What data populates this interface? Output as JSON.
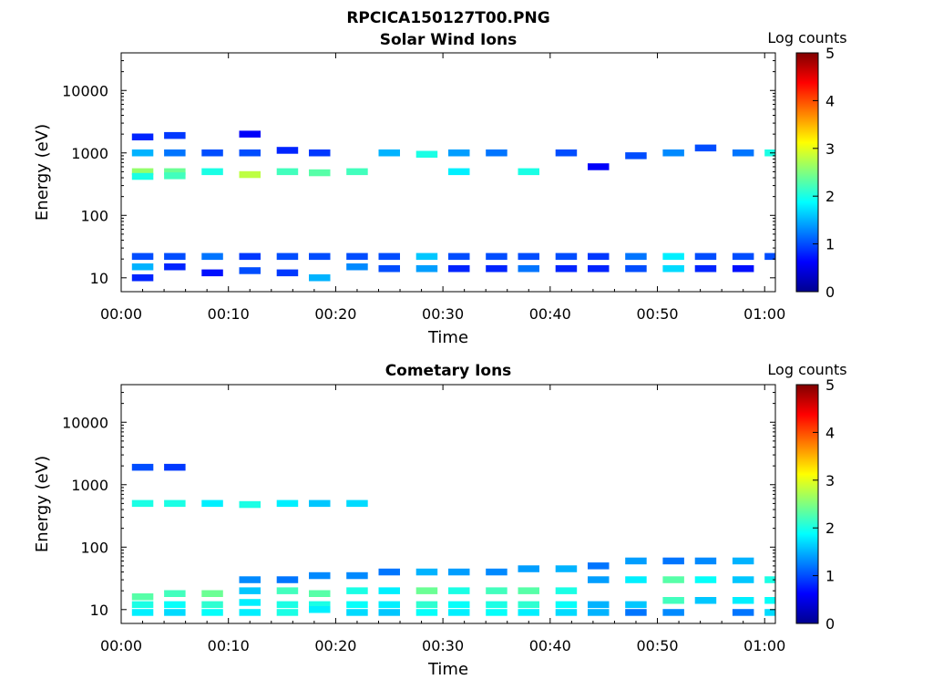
{
  "figure": {
    "title": "RPCICA150127T00.PNG"
  },
  "chart_data": [
    {
      "type": "heatmap",
      "title": "Solar Wind Ions",
      "xlabel": "Time",
      "ylabel": "Energy (eV)",
      "x_ticks": [
        "00:00",
        "00:10",
        "00:20",
        "00:30",
        "00:40",
        "00:50",
        "01:00"
      ],
      "x_range_minutes": [
        0,
        61
      ],
      "y_scale": "log",
      "y_range": [
        6,
        40000
      ],
      "y_ticks": [
        10,
        100,
        1000,
        10000
      ],
      "y_tick_labels": [
        "10",
        "100",
        "1000",
        "10000"
      ],
      "colorbar": {
        "label": "Log counts",
        "range": [
          0,
          5
        ],
        "ticks": [
          "0",
          "1",
          "2",
          "3",
          "4",
          "5"
        ],
        "colormap": "jet"
      },
      "time_step_minutes": 1,
      "bursts": [
        {
          "t": 2.0,
          "width": 2,
          "cells": [
            [
              22,
              1
            ],
            [
              15,
              1.5
            ],
            [
              10,
              0.8
            ],
            [
              500,
              2.6
            ],
            [
              420,
              2.0
            ],
            [
              1000,
              1.5
            ],
            [
              1800,
              0.8
            ]
          ]
        },
        {
          "t": 5.0,
          "width": 2,
          "cells": [
            [
              22,
              1
            ],
            [
              15,
              0.8
            ],
            [
              500,
              2.4
            ],
            [
              430,
              2.2
            ],
            [
              1000,
              1.2
            ],
            [
              1900,
              0.9
            ]
          ]
        },
        {
          "t": 8.5,
          "width": 2,
          "cells": [
            [
              22,
              1.2
            ],
            [
              12,
              0.7
            ],
            [
              500,
              2.0
            ],
            [
              1000,
              1.0
            ]
          ]
        },
        {
          "t": 12.0,
          "width": 2,
          "cells": [
            [
              22,
              0.9
            ],
            [
              13,
              1.0
            ],
            [
              450,
              2.8
            ],
            [
              1000,
              1.0
            ],
            [
              2000,
              0.6
            ]
          ]
        },
        {
          "t": 15.5,
          "width": 2,
          "cells": [
            [
              22,
              1.0
            ],
            [
              12,
              0.9
            ],
            [
              500,
              2.2
            ],
            [
              1100,
              0.8
            ]
          ]
        },
        {
          "t": 18.5,
          "width": 2,
          "cells": [
            [
              22,
              1.0
            ],
            [
              10,
              1.5
            ],
            [
              480,
              2.3
            ],
            [
              1000,
              0.9
            ]
          ]
        },
        {
          "t": 22.0,
          "width": 2,
          "cells": [
            [
              22,
              1.0
            ],
            [
              15,
              1.3
            ],
            [
              500,
              2.2
            ]
          ]
        },
        {
          "t": 25.0,
          "width": 2,
          "cells": [
            [
              22,
              1.0
            ],
            [
              14,
              1.0
            ],
            [
              1000,
              1.5
            ]
          ]
        },
        {
          "t": 28.5,
          "width": 2,
          "cells": [
            [
              22,
              1.6
            ],
            [
              14,
              1.4
            ],
            [
              950,
              2.0
            ]
          ]
        },
        {
          "t": 31.5,
          "width": 2,
          "cells": [
            [
              22,
              1.0
            ],
            [
              14,
              0.8
            ],
            [
              1000,
              1.4
            ],
            [
              500,
              1.8
            ]
          ]
        },
        {
          "t": 35.0,
          "width": 2,
          "cells": [
            [
              22,
              1.0
            ],
            [
              14,
              0.8
            ],
            [
              1000,
              1.2
            ]
          ]
        },
        {
          "t": 38.0,
          "width": 2,
          "cells": [
            [
              22,
              1.0
            ],
            [
              14,
              1.2
            ],
            [
              500,
              2.0
            ]
          ]
        },
        {
          "t": 41.5,
          "width": 2,
          "cells": [
            [
              22,
              1.0
            ],
            [
              14,
              0.8
            ],
            [
              1000,
              1.0
            ]
          ]
        },
        {
          "t": 44.5,
          "width": 2,
          "cells": [
            [
              22,
              0.9
            ],
            [
              14,
              0.8
            ],
            [
              600,
              0.6
            ]
          ]
        },
        {
          "t": 48.0,
          "width": 2,
          "cells": [
            [
              22,
              1.2
            ],
            [
              14,
              1.0
            ],
            [
              900,
              1.0
            ]
          ]
        },
        {
          "t": 51.5,
          "width": 2,
          "cells": [
            [
              22,
              1.8
            ],
            [
              14,
              1.7
            ],
            [
              1000,
              1.3
            ]
          ]
        },
        {
          "t": 54.5,
          "width": 2,
          "cells": [
            [
              22,
              1.0
            ],
            [
              14,
              0.8
            ],
            [
              1200,
              1.0
            ]
          ]
        },
        {
          "t": 58.0,
          "width": 2,
          "cells": [
            [
              22,
              1.0
            ],
            [
              14,
              0.7
            ],
            [
              1000,
              1.2
            ]
          ]
        },
        {
          "t": 60.5,
          "width": 1,
          "cells": [
            [
              22,
              1.0
            ],
            [
              1000,
              2.0
            ]
          ]
        }
      ]
    },
    {
      "type": "heatmap",
      "title": "Cometary Ions",
      "xlabel": "Time",
      "ylabel": "Energy (eV)",
      "x_ticks": [
        "00:00",
        "00:10",
        "00:20",
        "00:30",
        "00:40",
        "00:50",
        "01:00"
      ],
      "x_range_minutes": [
        0,
        61
      ],
      "y_scale": "log",
      "y_range": [
        6,
        40000
      ],
      "y_ticks": [
        10,
        100,
        1000,
        10000
      ],
      "y_tick_labels": [
        "10",
        "100",
        "1000",
        "10000"
      ],
      "colorbar": {
        "label": "Log counts",
        "range": [
          0,
          5
        ],
        "ticks": [
          "0",
          "1",
          "2",
          "3",
          "4",
          "5"
        ],
        "colormap": "jet"
      },
      "time_step_minutes": 1,
      "bursts": [
        {
          "t": 2.0,
          "width": 2,
          "cells": [
            [
              16,
              2.3
            ],
            [
              12,
              2.0
            ],
            [
              9,
              1.8
            ],
            [
              500,
              2.0
            ],
            [
              1900,
              1.0
            ]
          ]
        },
        {
          "t": 5.0,
          "width": 2,
          "cells": [
            [
              18,
              2.2
            ],
            [
              12,
              1.9
            ],
            [
              9,
              1.7
            ],
            [
              500,
              2.0
            ],
            [
              1900,
              0.9
            ]
          ]
        },
        {
          "t": 8.5,
          "width": 2,
          "cells": [
            [
              18,
              2.4
            ],
            [
              12,
              2.1
            ],
            [
              9,
              1.9
            ],
            [
              500,
              1.8
            ]
          ]
        },
        {
          "t": 12.0,
          "width": 2,
          "cells": [
            [
              20,
              1.6
            ],
            [
              13,
              1.8
            ],
            [
              9,
              1.8
            ],
            [
              480,
              2.0
            ],
            [
              30,
              1.3
            ]
          ]
        },
        {
          "t": 15.5,
          "width": 2,
          "cells": [
            [
              20,
              2.2
            ],
            [
              12,
              2.0
            ],
            [
              9,
              2.0
            ],
            [
              500,
              1.8
            ],
            [
              30,
              1.2
            ]
          ]
        },
        {
          "t": 18.5,
          "width": 2,
          "cells": [
            [
              18,
              2.3
            ],
            [
              12,
              2.0
            ],
            [
              10,
              1.8
            ],
            [
              500,
              1.6
            ],
            [
              35,
              1.3
            ]
          ]
        },
        {
          "t": 22.0,
          "width": 2,
          "cells": [
            [
              20,
              2.0
            ],
            [
              12,
              1.9
            ],
            [
              9,
              1.7
            ],
            [
              500,
              1.7
            ],
            [
              35,
              1.3
            ]
          ]
        },
        {
          "t": 25.0,
          "width": 2,
          "cells": [
            [
              20,
              1.8
            ],
            [
              12,
              1.8
            ],
            [
              9,
              1.6
            ],
            [
              40,
              1.2
            ]
          ]
        },
        {
          "t": 28.5,
          "width": 2,
          "cells": [
            [
              20,
              2.4
            ],
            [
              12,
              2.1
            ],
            [
              9,
              1.9
            ],
            [
              40,
              1.5
            ]
          ]
        },
        {
          "t": 31.5,
          "width": 2,
          "cells": [
            [
              20,
              2.0
            ],
            [
              12,
              1.9
            ],
            [
              9,
              1.8
            ],
            [
              40,
              1.4
            ]
          ]
        },
        {
          "t": 35.0,
          "width": 2,
          "cells": [
            [
              20,
              2.2
            ],
            [
              12,
              2.0
            ],
            [
              9,
              1.9
            ],
            [
              40,
              1.3
            ]
          ]
        },
        {
          "t": 38.0,
          "width": 2,
          "cells": [
            [
              20,
              2.3
            ],
            [
              12,
              2.1
            ],
            [
              9,
              1.8
            ],
            [
              45,
              1.4
            ]
          ]
        },
        {
          "t": 41.5,
          "width": 2,
          "cells": [
            [
              20,
              2.0
            ],
            [
              12,
              1.9
            ],
            [
              9,
              1.7
            ],
            [
              45,
              1.5
            ]
          ]
        },
        {
          "t": 44.5,
          "width": 2,
          "cells": [
            [
              30,
              1.4
            ],
            [
              12,
              1.5
            ],
            [
              9,
              1.5
            ],
            [
              50,
              1.2
            ]
          ]
        },
        {
          "t": 48.0,
          "width": 2,
          "cells": [
            [
              30,
              1.8
            ],
            [
              12,
              1.6
            ],
            [
              9,
              1.2
            ],
            [
              60,
              1.4
            ]
          ]
        },
        {
          "t": 51.5,
          "width": 2,
          "cells": [
            [
              30,
              2.3
            ],
            [
              14,
              2.2
            ],
            [
              9,
              1.3
            ],
            [
              60,
              1.2
            ]
          ]
        },
        {
          "t": 54.5,
          "width": 2,
          "cells": [
            [
              30,
              1.9
            ],
            [
              14,
              1.6
            ],
            [
              60,
              1.3
            ]
          ]
        },
        {
          "t": 58.0,
          "width": 2,
          "cells": [
            [
              30,
              1.6
            ],
            [
              14,
              1.8
            ],
            [
              9,
              1.2
            ],
            [
              60,
              1.5
            ]
          ]
        },
        {
          "t": 60.5,
          "width": 1,
          "cells": [
            [
              30,
              2.0
            ],
            [
              14,
              1.9
            ],
            [
              9,
              1.7
            ]
          ]
        }
      ]
    }
  ]
}
